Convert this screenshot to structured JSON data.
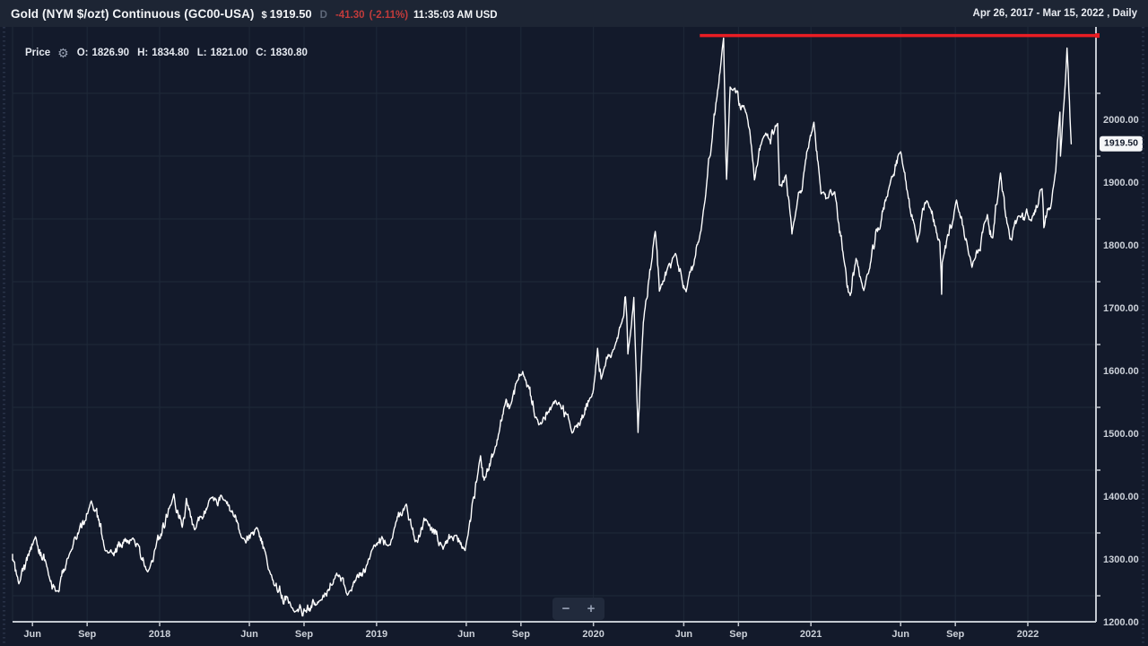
{
  "header": {
    "title": "Gold (NYM $/ozt) Continuous (GC00-USA)",
    "currency_symbol": "$",
    "last_price": "1919.50",
    "frequency_badge": "D",
    "change": "-41.30",
    "change_percent": "(-2.11%)",
    "quote_time": "11:35:03 AM USD",
    "date_range": "Apr 26, 2017 - Mar 15, 2022 , Daily"
  },
  "legend": {
    "series_label": "Price",
    "settings_icon_glyph": "⚙",
    "open_label": "O:",
    "open_value": "1826.90",
    "high_label": "H:",
    "high_value": "1834.80",
    "low_label": "L:",
    "low_value": "1821.00",
    "close_label": "C:",
    "close_value": "1830.80"
  },
  "controls": {
    "zoom_out": "−",
    "zoom_in": "+"
  },
  "colors": {
    "background": "#131a2b",
    "top_bar_background": "#1d2534",
    "grid": "#1f2939",
    "axis": "#c3c8d0",
    "tick_text": "#ccd1d9",
    "price_line": "#ffffff",
    "trendline_red": "#e91d23",
    "change_red": "#c23b3b",
    "badge_background": "#f5f6f8",
    "badge_text": "#121a2a"
  },
  "chart_data": {
    "type": "line",
    "title": "Gold (NYM $/ozt) Continuous (GC00-USA)",
    "interval": "Daily",
    "x_range": [
      "2017-04-26",
      "2022-03-15"
    ],
    "ylim": [
      1158,
      2106
    ],
    "grid": true,
    "legend_position": "top-left",
    "y_ticks": [
      {
        "value": 2000,
        "label": "2000.00"
      },
      {
        "value": 1900,
        "label": "1900.00"
      },
      {
        "value": 1800,
        "label": "1800.00"
      },
      {
        "value": 1700,
        "label": "1700.00"
      },
      {
        "value": 1600,
        "label": "1600.00"
      },
      {
        "value": 1500,
        "label": "1500.00"
      },
      {
        "value": 1400,
        "label": "1400.00"
      },
      {
        "value": 1300,
        "label": "1300.00"
      },
      {
        "value": 1200,
        "label": "1200.00"
      }
    ],
    "x_ticks": [
      {
        "date": "2017-06-01",
        "label": "Jun"
      },
      {
        "date": "2017-09-01",
        "label": "Sep"
      },
      {
        "date": "2018-01-01",
        "label": "2018"
      },
      {
        "date": "2018-06-01",
        "label": "Jun"
      },
      {
        "date": "2018-09-01",
        "label": "Sep"
      },
      {
        "date": "2019-01-01",
        "label": "2019"
      },
      {
        "date": "2019-06-01",
        "label": "Jun"
      },
      {
        "date": "2019-09-01",
        "label": "Sep"
      },
      {
        "date": "2020-01-01",
        "label": "2020"
      },
      {
        "date": "2020-06-01",
        "label": "Jun"
      },
      {
        "date": "2020-09-01",
        "label": "Sep"
      },
      {
        "date": "2021-01-01",
        "label": "2021"
      },
      {
        "date": "2021-06-01",
        "label": "Jun"
      },
      {
        "date": "2021-09-01",
        "label": "Sep"
      },
      {
        "date": "2022-01-01",
        "label": "2022"
      }
    ],
    "series": [
      {
        "name": "Price",
        "color": "#ffffff",
        "anchor_points": [
          [
            "2017-04-26",
            1266
          ],
          [
            "2017-05-09",
            1219
          ],
          [
            "2017-06-06",
            1294
          ],
          [
            "2017-06-26",
            1244
          ],
          [
            "2017-07-10",
            1207
          ],
          [
            "2017-08-02",
            1266
          ],
          [
            "2017-09-08",
            1351
          ],
          [
            "2017-10-06",
            1268
          ],
          [
            "2017-11-17",
            1292
          ],
          [
            "2017-12-12",
            1238
          ],
          [
            "2018-01-25",
            1362
          ],
          [
            "2018-02-08",
            1309
          ],
          [
            "2018-02-15",
            1355
          ],
          [
            "2018-03-01",
            1305
          ],
          [
            "2018-03-27",
            1355
          ],
          [
            "2018-04-18",
            1353
          ],
          [
            "2018-05-21",
            1291
          ],
          [
            "2018-06-14",
            1308
          ],
          [
            "2018-07-03",
            1242
          ],
          [
            "2018-08-16",
            1174
          ],
          [
            "2018-09-28",
            1192
          ],
          [
            "2018-10-26",
            1236
          ],
          [
            "2018-11-13",
            1201
          ],
          [
            "2018-12-28",
            1281
          ],
          [
            "2019-01-21",
            1280
          ],
          [
            "2019-02-20",
            1346
          ],
          [
            "2019-03-07",
            1286
          ],
          [
            "2019-03-25",
            1322
          ],
          [
            "2019-04-23",
            1274
          ],
          [
            "2019-05-14",
            1296
          ],
          [
            "2019-05-30",
            1272
          ],
          [
            "2019-06-25",
            1423
          ],
          [
            "2019-07-01",
            1384
          ],
          [
            "2019-07-18",
            1428
          ],
          [
            "2019-08-07",
            1513
          ],
          [
            "2019-08-13",
            1499
          ],
          [
            "2019-09-04",
            1557
          ],
          [
            "2019-10-01",
            1472
          ],
          [
            "2019-11-04",
            1508
          ],
          [
            "2019-11-26",
            1459
          ],
          [
            "2019-12-31",
            1523
          ],
          [
            "2020-01-08",
            1594
          ],
          [
            "2020-01-14",
            1545
          ],
          [
            "2020-02-21",
            1646
          ],
          [
            "2020-02-24",
            1676
          ],
          [
            "2020-02-28",
            1585
          ],
          [
            "2020-03-09",
            1675
          ],
          [
            "2020-03-16",
            1460
          ],
          [
            "2020-03-25",
            1635
          ],
          [
            "2020-04-14",
            1780
          ],
          [
            "2020-04-21",
            1685
          ],
          [
            "2020-05-18",
            1745
          ],
          [
            "2020-06-05",
            1684
          ],
          [
            "2020-06-30",
            1781
          ],
          [
            "2020-08-07",
            2088
          ],
          [
            "2020-08-12",
            1863
          ],
          [
            "2020-08-18",
            2010
          ],
          [
            "2020-09-15",
            1966
          ],
          [
            "2020-09-28",
            1862
          ],
          [
            "2020-10-12",
            1928
          ],
          [
            "2020-11-06",
            1952
          ],
          [
            "2020-11-09",
            1854
          ],
          [
            "2020-11-20",
            1870
          ],
          [
            "2020-11-30",
            1776
          ],
          [
            "2021-01-06",
            1954
          ],
          [
            "2021-01-18",
            1840
          ],
          [
            "2021-02-10",
            1843
          ],
          [
            "2021-02-26",
            1732
          ],
          [
            "2021-03-08",
            1678
          ],
          [
            "2021-03-18",
            1737
          ],
          [
            "2021-03-31",
            1686
          ],
          [
            "2021-05-17",
            1868
          ],
          [
            "2021-06-01",
            1907
          ],
          [
            "2021-06-29",
            1763
          ],
          [
            "2021-07-15",
            1829
          ],
          [
            "2021-08-06",
            1763
          ],
          [
            "2021-08-09",
            1680
          ],
          [
            "2021-08-10",
            1731
          ],
          [
            "2021-09-03",
            1830
          ],
          [
            "2021-09-29",
            1723
          ],
          [
            "2021-10-25",
            1807
          ],
          [
            "2021-11-03",
            1770
          ],
          [
            "2021-11-16",
            1873
          ],
          [
            "2021-12-02",
            1768
          ],
          [
            "2021-12-17",
            1805
          ],
          [
            "2022-01-07",
            1797
          ],
          [
            "2022-01-25",
            1848
          ],
          [
            "2022-01-28",
            1786
          ],
          [
            "2022-02-10",
            1827
          ],
          [
            "2022-02-24",
            1970
          ],
          [
            "2022-02-25",
            1900
          ],
          [
            "2022-03-08",
            2072
          ],
          [
            "2022-03-15",
            1919.5
          ]
        ]
      }
    ],
    "trendline": {
      "type": "horizontal-resistance",
      "price": 2092,
      "start_date": "2020-06-28",
      "extends_to_right_edge": true,
      "color": "#e91d23"
    },
    "last_price_marker": {
      "value": 1919.5,
      "label": "1919.50"
    }
  }
}
